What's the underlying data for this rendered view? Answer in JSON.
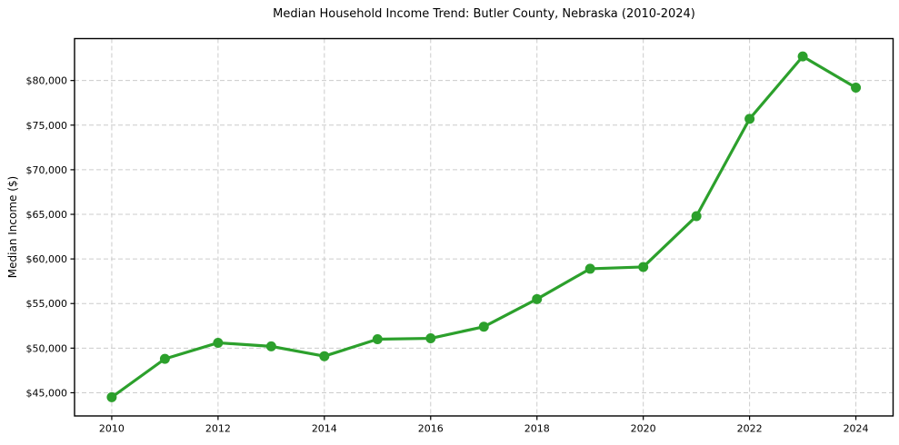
{
  "chart_data": {
    "type": "line",
    "title": "Median Household Income Trend: Butler County, Nebraska (2010-2024)",
    "xlabel": "",
    "ylabel": "Median Income ($)",
    "series_name": "Median Household Income",
    "x": [
      2010,
      2011,
      2012,
      2013,
      2014,
      2015,
      2016,
      2017,
      2018,
      2019,
      2020,
      2021,
      2022,
      2023,
      2024
    ],
    "values": [
      44500,
      48800,
      50600,
      50200,
      49100,
      51000,
      51100,
      52400,
      55500,
      58900,
      59100,
      64800,
      75700,
      82700,
      79200
    ],
    "xlim": [
      2009.3,
      2024.7
    ],
    "ylim": [
      42400,
      84700
    ],
    "xticks": {
      "values": [
        2010,
        2012,
        2014,
        2016,
        2018,
        2020,
        2022,
        2024
      ],
      "labels": [
        "2010",
        "2012",
        "2014",
        "2016",
        "2018",
        "2020",
        "2022",
        "2024"
      ]
    },
    "yticks": {
      "values": [
        45000,
        50000,
        55000,
        60000,
        65000,
        70000,
        75000,
        80000
      ],
      "labels": [
        "$45,000",
        "$50,000",
        "$55,000",
        "$60,000",
        "$65,000",
        "$70,000",
        "$75,000",
        "$80,000"
      ]
    },
    "grid": true,
    "grid_style": "dashed",
    "legend": "none",
    "marker": "circle",
    "colors": {
      "line": "#2ca02c",
      "marker": "#2ca02c",
      "grid": "#cccccc",
      "spine": "#000000",
      "text": "#000000",
      "background": "#ffffff"
    }
  }
}
